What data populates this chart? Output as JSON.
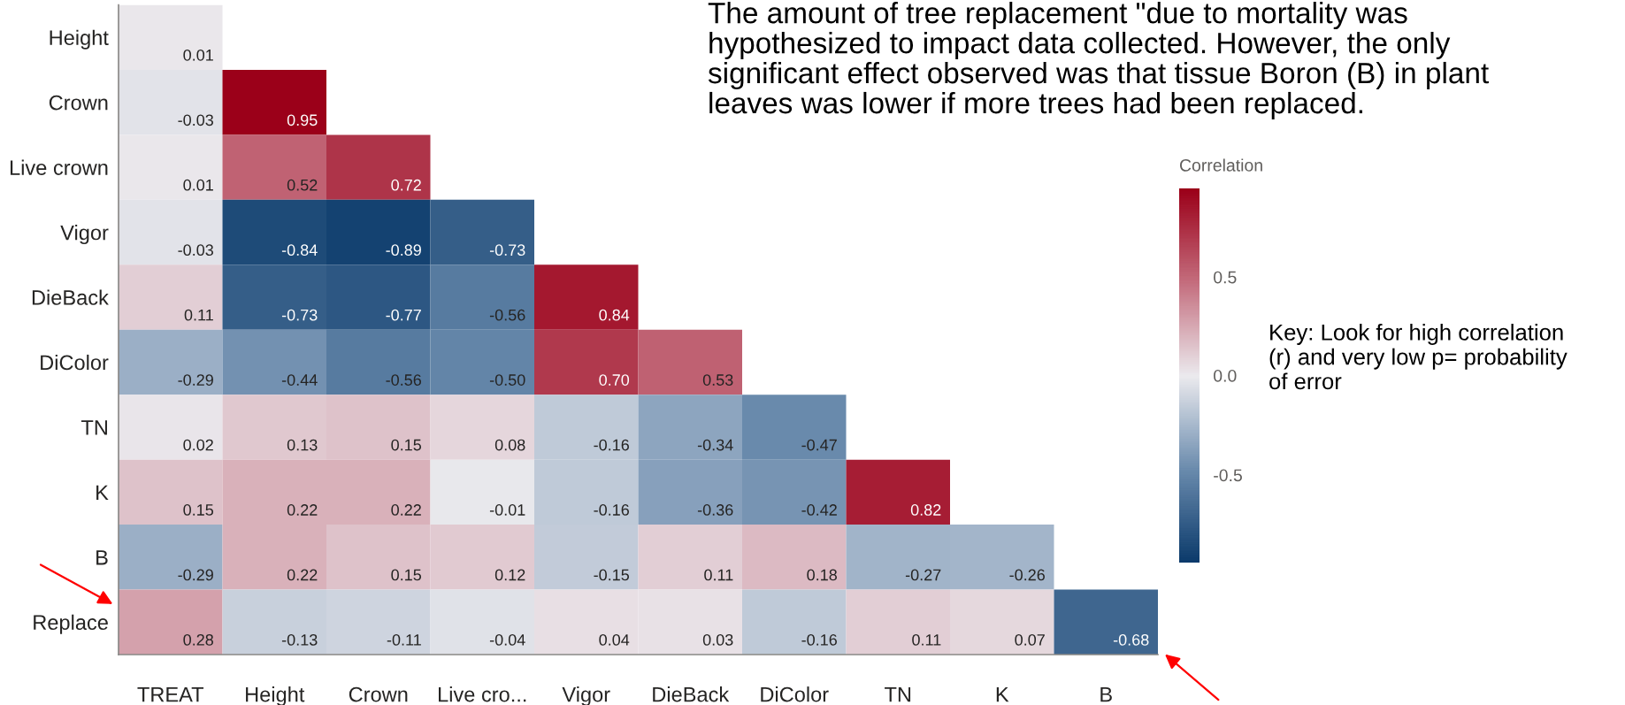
{
  "chart_data": {
    "type": "heatmap",
    "categories": [
      "TREAT",
      "Height",
      "Crown",
      "Live cro...",
      "Vigor",
      "DieBack",
      "DiColor",
      "TN",
      "K",
      "B"
    ],
    "y_categories": [
      "Height",
      "Crown",
      "Live crown",
      "Vigor",
      "DieBack",
      "DiColor",
      "TN",
      "K",
      "B",
      "Replace"
    ],
    "cells": [
      [
        0.01,
        null,
        null,
        null,
        null,
        null,
        null,
        null,
        null,
        null
      ],
      [
        -0.03,
        0.95,
        null,
        null,
        null,
        null,
        null,
        null,
        null,
        null
      ],
      [
        0.01,
        0.52,
        0.72,
        null,
        null,
        null,
        null,
        null,
        null,
        null
      ],
      [
        -0.03,
        -0.84,
        -0.89,
        -0.73,
        null,
        null,
        null,
        null,
        null,
        null
      ],
      [
        0.11,
        -0.73,
        -0.77,
        -0.56,
        0.84,
        null,
        null,
        null,
        null,
        null
      ],
      [
        -0.29,
        -0.44,
        -0.56,
        -0.5,
        0.7,
        0.53,
        null,
        null,
        null,
        null
      ],
      [
        0.02,
        0.13,
        0.15,
        0.08,
        -0.16,
        -0.34,
        -0.47,
        null,
        null,
        null
      ],
      [
        0.15,
        0.22,
        0.22,
        -0.01,
        -0.16,
        -0.36,
        -0.42,
        0.82,
        null,
        null
      ],
      [
        -0.29,
        0.22,
        0.15,
        0.12,
        -0.15,
        0.11,
        0.18,
        -0.27,
        -0.26,
        null
      ],
      [
        0.28,
        -0.13,
        -0.11,
        -0.04,
        0.04,
        0.03,
        -0.16,
        0.11,
        0.07,
        -0.68
      ]
    ],
    "cell_labels": [
      [
        "0.01",
        null,
        null,
        null,
        null,
        null,
        null,
        null,
        null,
        null
      ],
      [
        "-0.03",
        "0.95",
        null,
        null,
        null,
        null,
        null,
        null,
        null,
        null
      ],
      [
        "0.01",
        "0.52",
        "0.72",
        null,
        null,
        null,
        null,
        null,
        null,
        null
      ],
      [
        "-0.03",
        "-0.84",
        "-0.89",
        "-0.73",
        null,
        null,
        null,
        null,
        null,
        null
      ],
      [
        "0.11",
        "-0.73",
        "-0.77",
        "-0.56",
        "0.84",
        null,
        null,
        null,
        null,
        null
      ],
      [
        "-0.29",
        "-0.44",
        "-0.56",
        "-0.50",
        "0.70",
        "0.53",
        null,
        null,
        null,
        null
      ],
      [
        "0.02",
        "0.13",
        "0.15",
        "0.08",
        "-0.16",
        "-0.34",
        "-0.47",
        null,
        null,
        null
      ],
      [
        "0.15",
        "0.22",
        "0.22",
        "-0.01",
        "-0.16",
        "-0.36",
        "-0.42",
        "0.82",
        null,
        null
      ],
      [
        "-0.29",
        "0.22",
        "0.15",
        "0.12",
        "-0.15",
        "0.11",
        "0.18",
        "-0.27",
        "-0.26",
        null
      ],
      [
        "0.28",
        "-0.13",
        "-0.11",
        "-0.04",
        "0.04",
        "0.03",
        "-0.16",
        "0.11",
        "0.07",
        "-0.68"
      ]
    ],
    "clim": [
      -0.94,
      0.95
    ],
    "cticks": [
      0.5,
      {
        "value": 0,
        "label": "0.0"
      },
      -0.5
    ],
    "clabel": "Correlation",
    "annotations": [
      "The amount of tree replacement \"due to mortality was\nhypothesized to impact data collected. However, the only\nsignificant effect observed was that tissue Boron (B) in plant\nleaves was lower if more trees had been replaced.",
      "Key: Look for high correlation\n(r) and very low p= probability\nof error"
    ]
  }
}
